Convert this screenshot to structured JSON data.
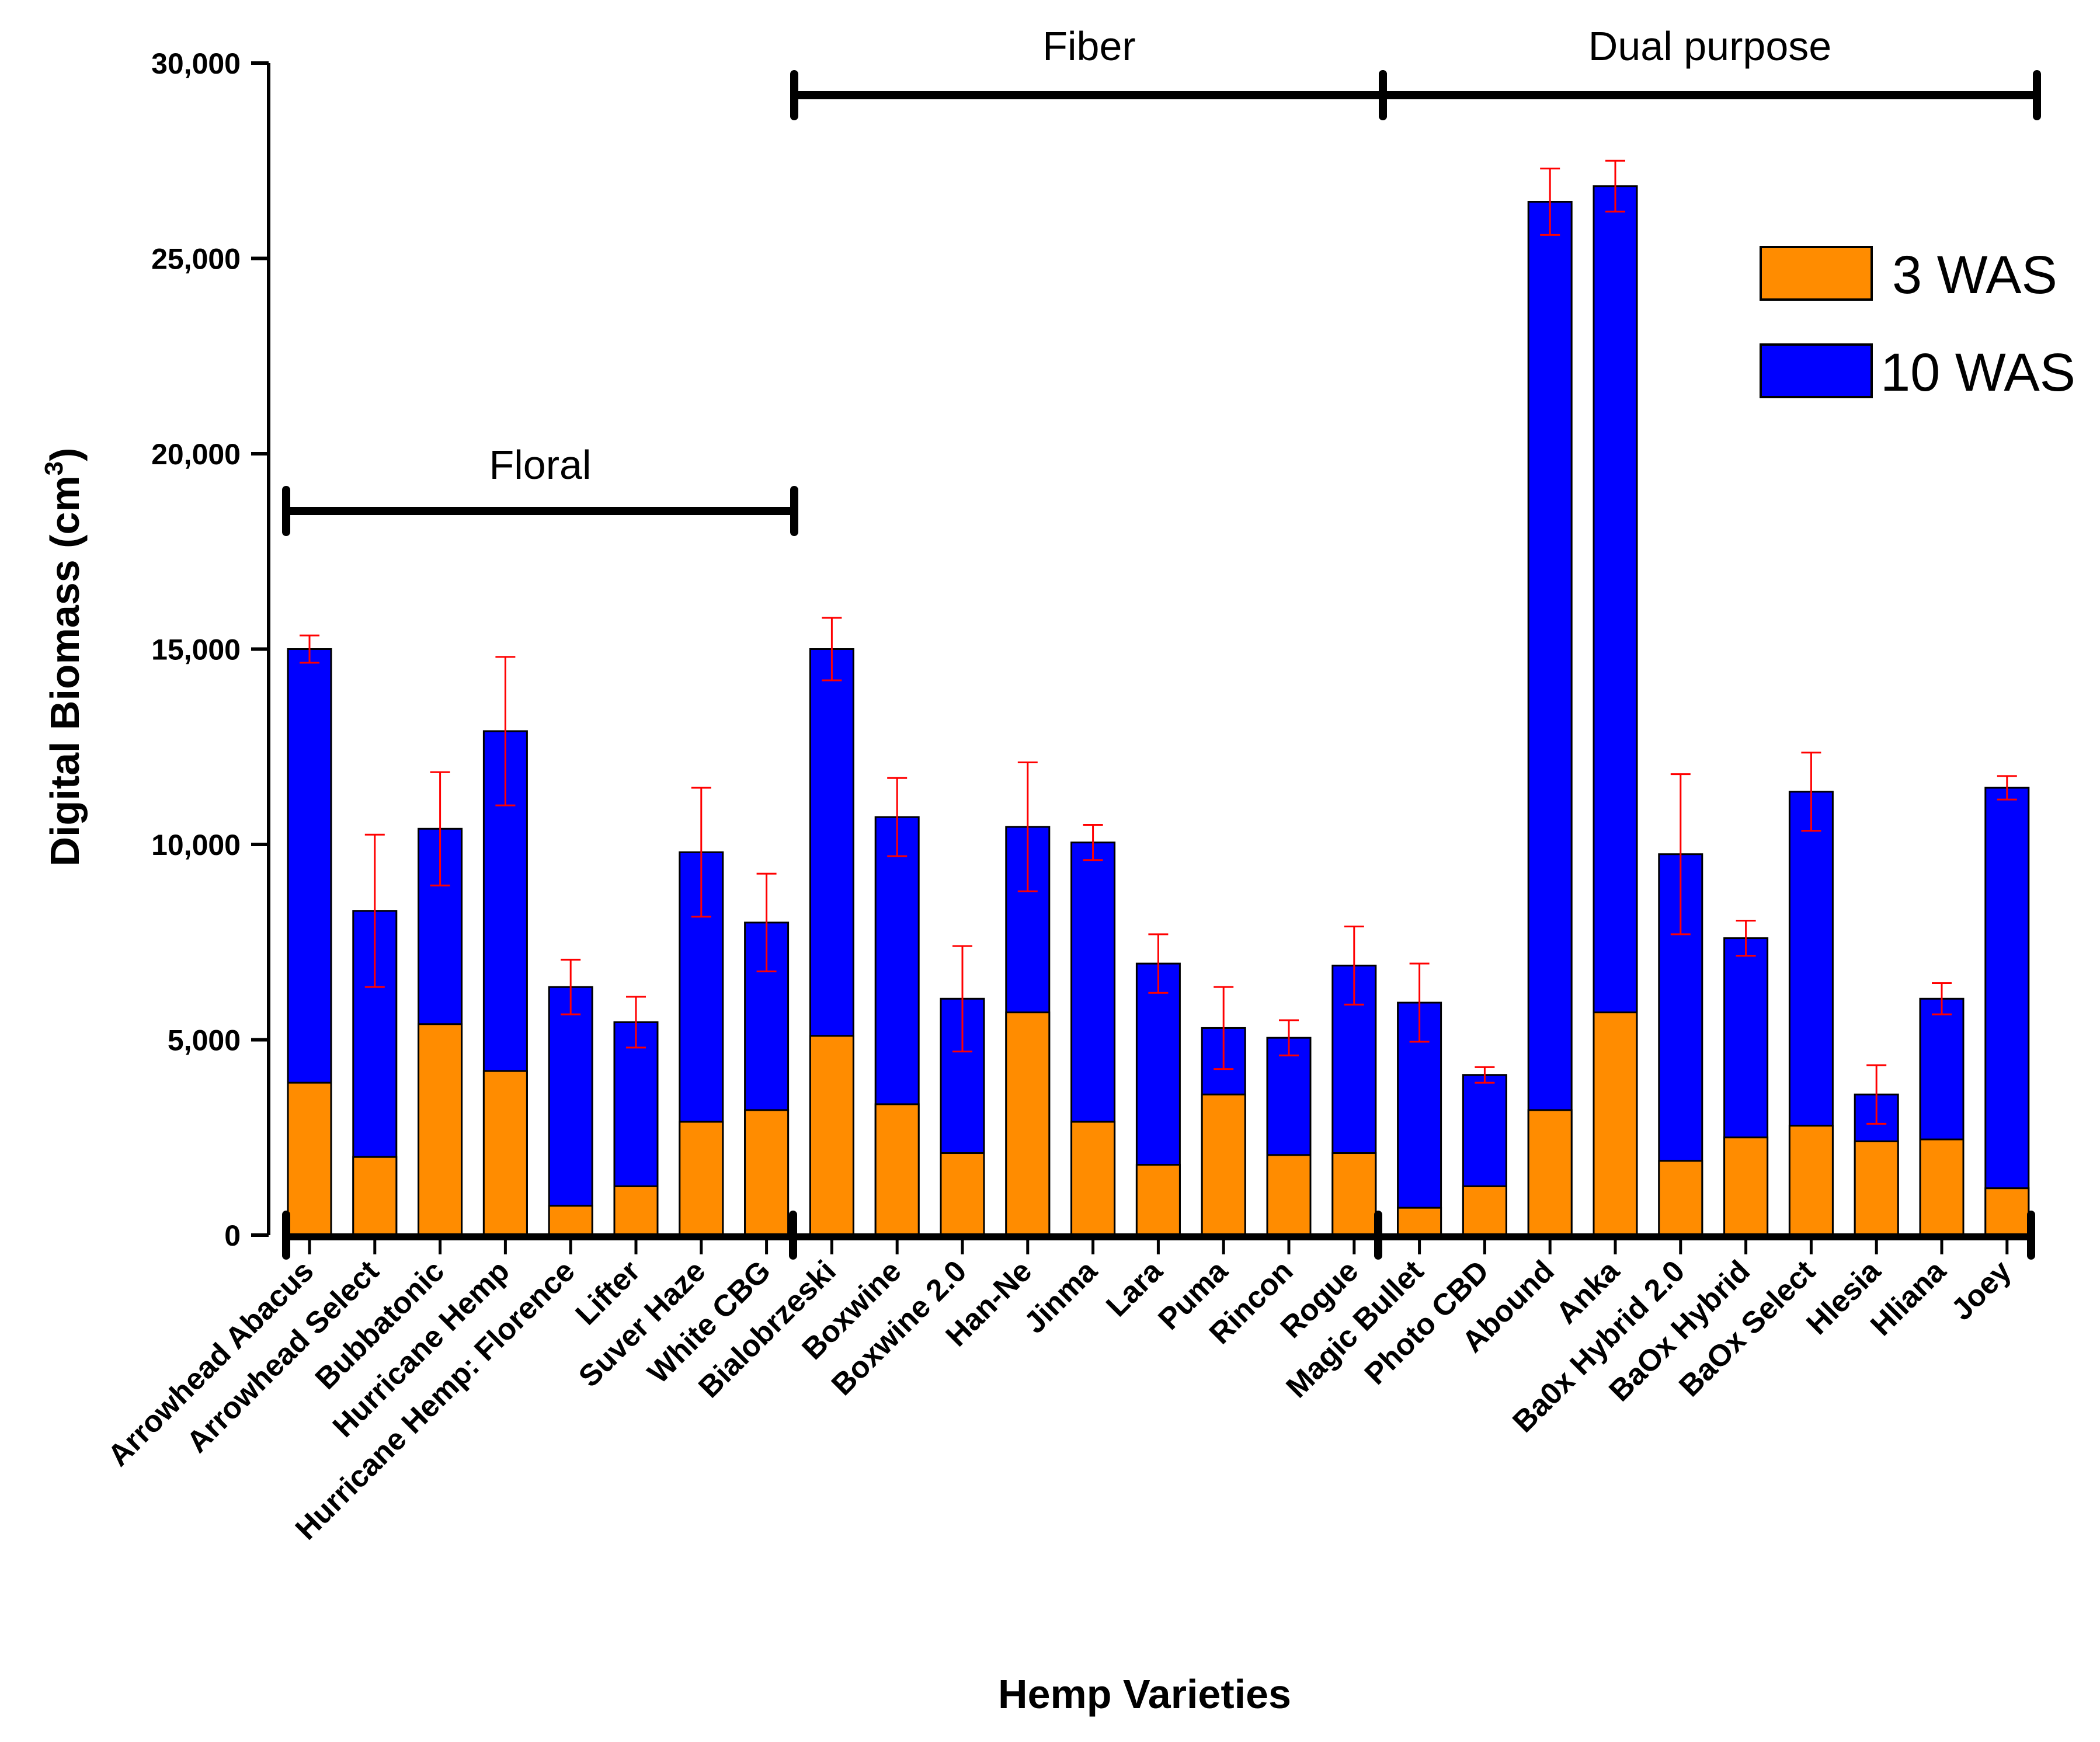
{
  "chart_data": {
    "type": "bar",
    "stacked": "overlay",
    "xlabel": "Hemp Varieties",
    "ylabel": "Digital Biomass (cm",
    "ylabel_sup": "3",
    "ylabel_close": ")",
    "ylim": [
      0,
      30000
    ],
    "yticks": [
      0,
      5000,
      10000,
      15000,
      20000,
      25000,
      30000
    ],
    "ytick_labels": [
      "0",
      "5,000",
      "10,000",
      "15,000",
      "20,000",
      "25,000",
      "30,000"
    ],
    "categories": [
      "Arrowhead Abacus",
      "Arrowhead Select",
      "Bubbatonic",
      "Hurricane Hemp",
      "Hurricane Hemp: Florence",
      "Lifter",
      "Suver Haze",
      "White CBG",
      "Bialobrzeski",
      "Boxwine",
      "Boxwine 2.0",
      "Han-Ne",
      "Jinma",
      "Lara",
      "Puma",
      "Rincon",
      "Rogue",
      "Magic Bullet",
      "Photo CBD",
      "Abound",
      "Anka",
      "Ba0x Hybrid 2.0",
      "BaOx Hybrid",
      "BaOx Select",
      "Hlesia",
      "Hliana",
      "Joey"
    ],
    "series": [
      {
        "name": "10 WAS",
        "color": "#0000ff",
        "values": [
          15000,
          8300,
          10400,
          12900,
          6350,
          5450,
          9800,
          8000,
          15000,
          10700,
          6050,
          10450,
          10050,
          6950,
          5300,
          5050,
          6900,
          5950,
          4100,
          26450,
          26850,
          9750,
          7600,
          11350,
          3600,
          6050,
          11450
        ],
        "errors": [
          350,
          1950,
          1450,
          1900,
          700,
          650,
          1650,
          1250,
          800,
          1000,
          1350,
          1650,
          450,
          750,
          1050,
          450,
          1000,
          1000,
          200,
          850,
          650,
          2050,
          450,
          1000,
          750,
          400,
          300
        ]
      },
      {
        "name": "3 WAS",
        "color": "#ff8c00",
        "values": [
          3900,
          2000,
          5400,
          4200,
          750,
          1250,
          2900,
          3200,
          5100,
          3350,
          2100,
          5700,
          2900,
          1800,
          3600,
          2050,
          2100,
          700,
          1250,
          3200,
          5700,
          1900,
          2500,
          2800,
          2400,
          2450,
          1200
        ]
      }
    ],
    "error_bar_color": "#ff0000",
    "groups": [
      {
        "label": "Floral",
        "start": 0,
        "end": 7
      },
      {
        "label": "Fiber",
        "start": 8,
        "end": 16
      },
      {
        "label": "Dual purpose",
        "start": 17,
        "end": 26
      }
    ],
    "legend": {
      "position": "top-right",
      "entries": [
        {
          "label": "3 WAS",
          "color": "#ff8c00"
        },
        {
          "label": "10 WAS",
          "color": "#0000ff"
        }
      ]
    }
  }
}
